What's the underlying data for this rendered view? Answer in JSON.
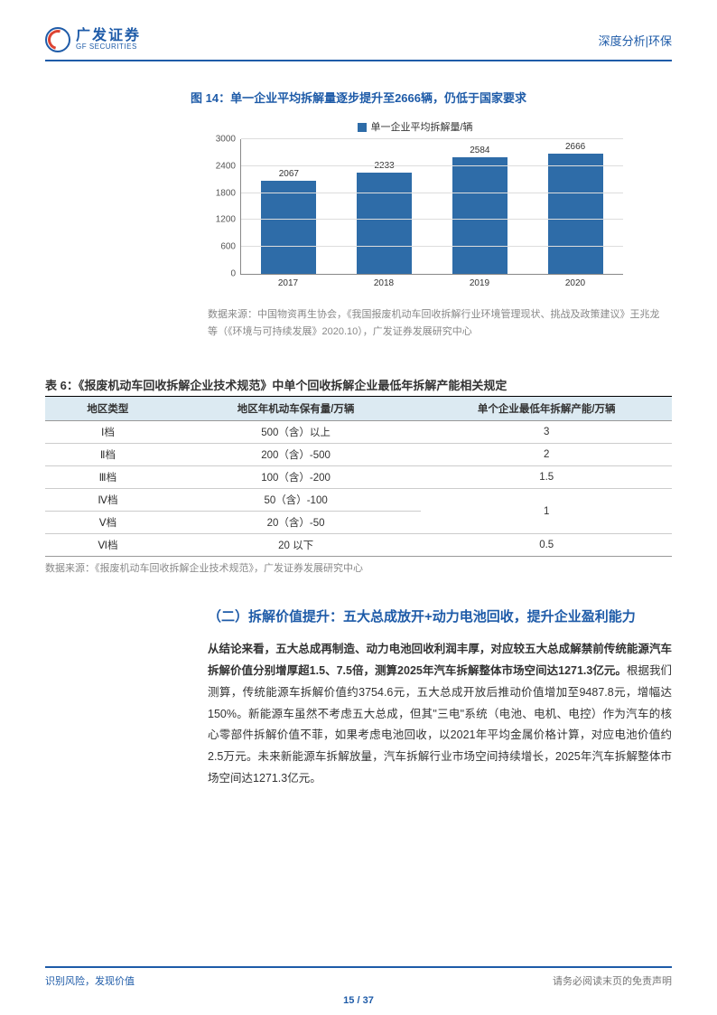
{
  "header": {
    "logo_cn": "广发证券",
    "logo_en": "GF SECURITIES",
    "right": "深度分析|环保"
  },
  "figure": {
    "title": "图 14：单一企业平均拆解量逐步提升至2666辆，仍低于国家要求",
    "legend": "单一企业平均拆解量/辆",
    "type": "bar",
    "categories": [
      "2017",
      "2018",
      "2019",
      "2020"
    ],
    "values": [
      2067,
      2233,
      2584,
      2666
    ],
    "ylim_max": 3000,
    "yticks": [
      0,
      600,
      1200,
      1800,
      2400,
      3000
    ],
    "bar_color": "#2e6ca8",
    "grid_color": "#dddddd",
    "axis_color": "#888888",
    "source": "数据来源：中国物资再生协会，《我国报废机动车回收拆解行业环境管理现状、挑战及政策建议》王兆龙等（《环境与可持续发展》2020.10），广发证券发展研究中心"
  },
  "table": {
    "title": "表 6：《报废机动车回收拆解企业技术规范》中单个回收拆解企业最低年拆解产能相关规定",
    "columns": [
      "地区类型",
      "地区年机动车保有量/万辆",
      "单个企业最低年拆解产能/万辆"
    ],
    "col_widths": [
      "20%",
      "40%",
      "40%"
    ],
    "rows": [
      [
        "Ⅰ档",
        "500（含）以上",
        "3"
      ],
      [
        "Ⅱ档",
        "200（含）-500",
        "2"
      ],
      [
        "Ⅲ档",
        "100（含）-200",
        "1.5"
      ],
      [
        "Ⅳ档",
        "50（含）-100",
        "1"
      ],
      [
        "Ⅴ档",
        "20（含）-50",
        ""
      ],
      [
        "Ⅵ档",
        "20 以下",
        "0.5"
      ]
    ],
    "header_bg": "#dceaf2",
    "source": "数据来源：《报废机动车回收拆解企业技术规范》，广发证券发展研究中心"
  },
  "section": {
    "title": "（二）拆解价值提升：五大总成放开+动力电池回收，提升企业盈利能力",
    "body_bold": "从结论来看，五大总成再制造、动力电池回收利润丰厚，对应较五大总成解禁前传统能源汽车拆解价值分别增厚超1.5、7.5倍，测算2025年汽车拆解整体市场空间达1271.3亿元。",
    "body_rest": "根据我们测算，传统能源车拆解价值约3754.6元，五大总成开放后推动价值增加至9487.8元，增幅达150%。新能源车虽然不考虑五大总成，但其\"三电\"系统（电池、电机、电控）作为汽车的核心零部件拆解价值不菲，如果考虑电池回收，以2021年平均金属价格计算，对应电池价值约2.5万元。未来新能源车拆解放量，汽车拆解行业市场空间持续增长，2025年汽车拆解整体市场空间达1271.3亿元。"
  },
  "footer": {
    "left": "识别风险，发现价值",
    "right": "请务必阅读末页的免责声明",
    "page": "15 / 37"
  }
}
